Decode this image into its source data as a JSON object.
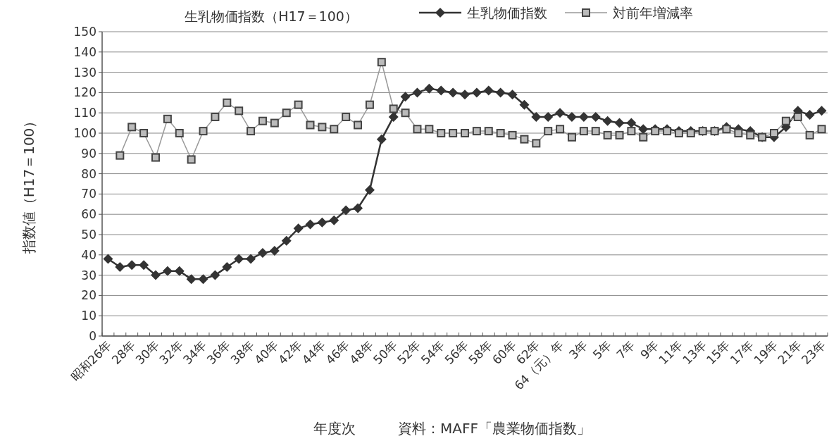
{
  "chart_data": {
    "type": "line",
    "title": "生乳物価指数（H17＝100）",
    "xlabel": "年度次",
    "ylabel": "指数値（H17＝100）",
    "annotations": [
      "資料：MAFF「農業物価指数」"
    ],
    "categories": [
      "昭和26年",
      null,
      "28年",
      null,
      "30年",
      null,
      "32年",
      null,
      "34年",
      null,
      "36年",
      null,
      "38年",
      null,
      "40年",
      null,
      "42年",
      null,
      "44年",
      null,
      "46年",
      null,
      "48年",
      null,
      "50年",
      null,
      "52年",
      null,
      "54年",
      null,
      "56年",
      null,
      "58年",
      null,
      "60年",
      null,
      "62年",
      null,
      "64（元）年",
      null,
      "3年",
      null,
      "5年",
      null,
      "7年",
      null,
      "9年",
      null,
      "11年",
      null,
      "13年",
      null,
      "15年",
      null,
      "17年",
      null,
      "19年",
      null,
      "21年",
      null,
      "23年"
    ],
    "series": [
      {
        "name": "生乳物価指数",
        "color": "#333333",
        "marker": "diamond",
        "line_style": "solid",
        "values": [
          38,
          34,
          35,
          35,
          30,
          32,
          32,
          28,
          28,
          30,
          34,
          38,
          38,
          41,
          42,
          47,
          53,
          55,
          56,
          57,
          62,
          63,
          72,
          97,
          108,
          118,
          120,
          122,
          121,
          120,
          119,
          120,
          121,
          120,
          119,
          114,
          108,
          108,
          110,
          108,
          108,
          108,
          106,
          105,
          105,
          102,
          102,
          102,
          101,
          101,
          101,
          101,
          103,
          102,
          101,
          98,
          98,
          103,
          111,
          109,
          111
        ]
      },
      {
        "name": "対前年増減率",
        "color": "#999999",
        "marker": "square",
        "line_style": "solid",
        "values": [
          null,
          89,
          103,
          100,
          88,
          107,
          100,
          87,
          101,
          108,
          115,
          111,
          101,
          106,
          105,
          110,
          114,
          104,
          103,
          102,
          108,
          104,
          114,
          135,
          112,
          110,
          102,
          102,
          100,
          100,
          100,
          101,
          101,
          100,
          99,
          97,
          95,
          101,
          102,
          98,
          101,
          101,
          99,
          99,
          101,
          98,
          101,
          101,
          100,
          100,
          101,
          101,
          102,
          100,
          99,
          98,
          100,
          106,
          108,
          99,
          102
        ]
      }
    ],
    "ylim": [
      0,
      150
    ],
    "yticks": [
      0,
      10,
      20,
      30,
      40,
      50,
      60,
      70,
      80,
      90,
      100,
      110,
      120,
      130,
      140,
      150
    ],
    "grid": "y",
    "legend": "top right"
  }
}
